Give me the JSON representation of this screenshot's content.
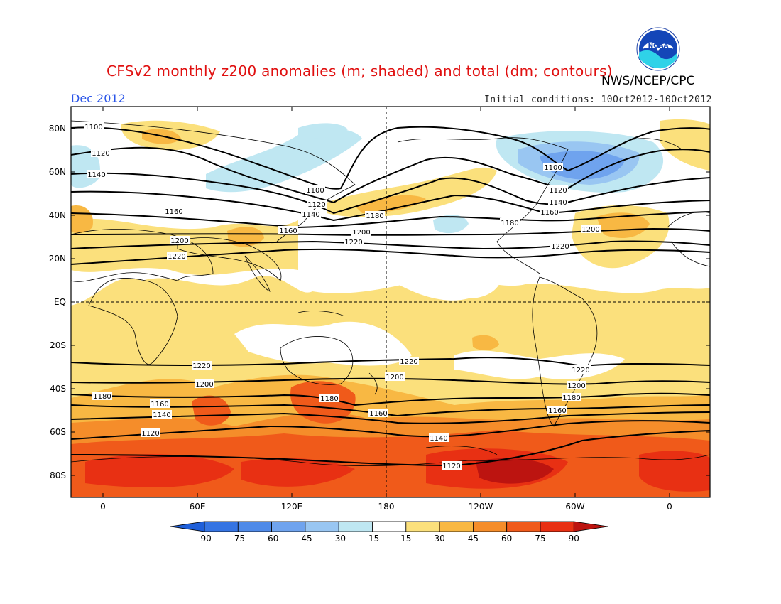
{
  "header": {
    "title": "CFSv2 monthly z200 anomalies (m; shaded) and total (dm; contours)",
    "agency": "NWS/NCEP/CPC",
    "month": "Dec 2012",
    "initial_conditions": "Initial conditions: 10Oct2012-10Oct2012",
    "logo_icon": "noaa-logo-icon"
  },
  "axes": {
    "lat_labels": [
      "80N",
      "60N",
      "40N",
      "20N",
      "EQ",
      "20S",
      "40S",
      "60S",
      "80S"
    ],
    "lon_labels": [
      "0",
      "60E",
      "120E",
      "180",
      "120W",
      "60W",
      "0"
    ]
  },
  "contours": {
    "labels": [
      "1100",
      "1120",
      "1140",
      "1160",
      "1180",
      "1200",
      "1220"
    ]
  },
  "colorbar": {
    "ticks": [
      "-90",
      "-75",
      "-60",
      "-45",
      "-30",
      "-15",
      "15",
      "30",
      "45",
      "60",
      "75",
      "90"
    ],
    "colors": [
      "#1f5fd9",
      "#3574e3",
      "#4f8ae8",
      "#6fa3ee",
      "#99c6f2",
      "#bfe7f2",
      "#ffffff",
      "#fbe07c",
      "#f8b843",
      "#f58d2a",
      "#f05a1a",
      "#e83013",
      "#bc1410"
    ]
  },
  "colors": {
    "title": "#e01010",
    "month": "#2b56e8",
    "contour": "#000000"
  }
}
